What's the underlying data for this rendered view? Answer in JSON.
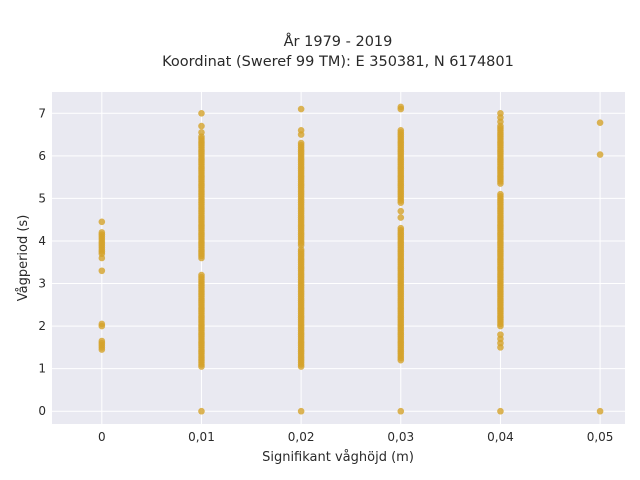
{
  "chart_data": {
    "type": "scatter",
    "title_line1": "År 1979 - 2019",
    "title_line2": "Koordinat (Sweref 99 TM): E 350381, N 6174801",
    "xlabel": "Signifikant våghöjd (m)",
    "ylabel": "Vågperiod (s)",
    "xlim": [
      -0.005,
      0.0525
    ],
    "ylim": [
      -0.3,
      7.5
    ],
    "x_ticks": [
      0,
      0.01,
      0.02,
      0.03,
      0.04,
      0.05
    ],
    "x_tick_labels": [
      "0",
      "0,01",
      "0,02",
      "0,03",
      "0,04",
      "0,05"
    ],
    "y_ticks": [
      0,
      1,
      2,
      3,
      4,
      5,
      6,
      7
    ],
    "y_tick_labels": [
      "0",
      "1",
      "2",
      "3",
      "4",
      "5",
      "6",
      "7"
    ],
    "grid": true,
    "colors": {
      "marker": "#d4a32a",
      "plot_bg": "#e9e9f1",
      "grid": "#ffffff"
    },
    "columns": [
      {
        "x": 0,
        "points": [
          4.45,
          4.2,
          4.15,
          4.1,
          4.05,
          4.0,
          3.95,
          3.9,
          3.85,
          3.8,
          3.75,
          3.7,
          3.6,
          3.3,
          2.05,
          2.0,
          1.65,
          1.6,
          1.55,
          1.5,
          1.45
        ]
      },
      {
        "x": 0.01,
        "points": [
          7.0,
          6.7,
          6.55
        ],
        "ranges": [
          [
            1.05,
            3.2
          ],
          [
            3.6,
            6.45
          ]
        ],
        "zeros": true
      },
      {
        "x": 0.02,
        "points": [
          7.1,
          6.6,
          6.5
        ],
        "ranges": [
          [
            1.05,
            3.8
          ],
          [
            3.9,
            6.3
          ]
        ],
        "zeros": true
      },
      {
        "x": 0.03,
        "points": [
          7.15,
          7.1,
          4.7,
          4.55
        ],
        "ranges": [
          [
            1.2,
            4.3
          ],
          [
            4.9,
            6.6
          ]
        ],
        "zeros": true
      },
      {
        "x": 0.04,
        "points": [
          7.0,
          6.9,
          6.8,
          1.8,
          1.7,
          1.6,
          1.5
        ],
        "ranges": [
          [
            2.0,
            5.1
          ],
          [
            5.35,
            6.7
          ]
        ],
        "zeros": true
      },
      {
        "x": 0.05,
        "points": [
          6.78,
          6.03
        ],
        "zeros": true
      }
    ]
  }
}
